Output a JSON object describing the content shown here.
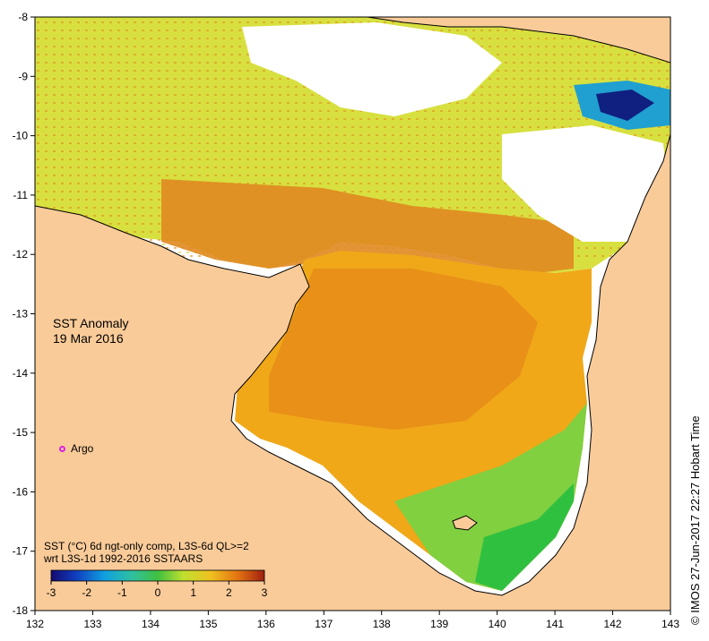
{
  "map": {
    "lon_range": [
      132,
      143
    ],
    "lat_range": [
      -18,
      -8
    ],
    "x_ticks": [
      "132",
      "133",
      "134",
      "135",
      "136",
      "137",
      "138",
      "139",
      "140",
      "141",
      "142",
      "143"
    ],
    "y_ticks": [
      "-8",
      "-9",
      "-10",
      "-11",
      "-12",
      "-13",
      "-14",
      "-15",
      "-16",
      "-17",
      "-18"
    ],
    "colors": {
      "land": "#f9cb99",
      "coast": "#000000",
      "warm": "#e08a10",
      "hot": "#c05010",
      "mid": "#f0b020",
      "neutral": "#c8e040",
      "cool": "#30c040",
      "cold": "#1060c0"
    }
  },
  "title": {
    "line1": "SST Anomaly",
    "line2": "19 Mar 2016"
  },
  "legend": {
    "argo_label": "Argo",
    "argo_color": "#e020e0"
  },
  "caption": {
    "line1": "SST (°C) 6d ngt-only comp, L3S-6d QL>=2",
    "line2": "wrt L3S-1d 1992-2016 SSTAARS"
  },
  "colorbar": {
    "ticks": [
      "-3",
      "-2",
      "-1",
      "0",
      "1",
      "2",
      "3"
    ]
  },
  "credit": "© IMOS 27-Jun-2017 22:27 Hobart Time"
}
